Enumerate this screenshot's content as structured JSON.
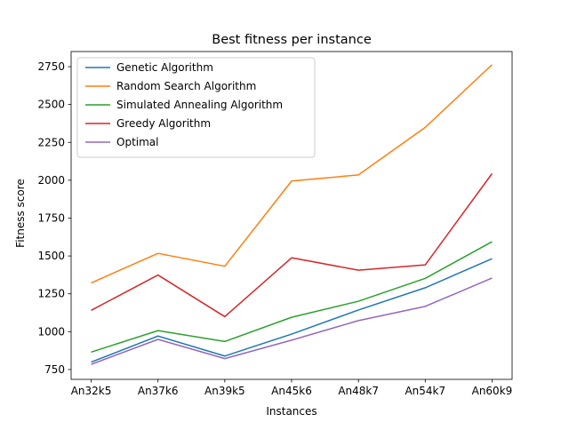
{
  "chart_data": {
    "type": "line",
    "title": "Best fitness per instance",
    "xlabel": "Instances",
    "ylabel": "Fitness score",
    "categories": [
      "An32k5",
      "An37k6",
      "An39k5",
      "An45k6",
      "An48k7",
      "An54k7",
      "An60k9"
    ],
    "ylim": [
      685,
      2850
    ],
    "yticks": [
      750,
      1000,
      1250,
      1500,
      1750,
      2000,
      2250,
      2500,
      2750
    ],
    "grid": false,
    "legend_position": "upper-left",
    "series": [
      {
        "name": "Genetic Algorithm",
        "color": "#1f77b4",
        "values": [
          799,
          971,
          839,
          984,
          1143,
          1290,
          1482
        ]
      },
      {
        "name": "Random Search Algorithm",
        "color": "#ff7f0e",
        "values": [
          1322,
          1517,
          1432,
          1995,
          2035,
          2349,
          2763
        ]
      },
      {
        "name": "Simulated Annealing Algorithm",
        "color": "#2ca02c",
        "values": [
          865,
          1007,
          935,
          1095,
          1201,
          1352,
          1594
        ]
      },
      {
        "name": "Greedy Algorithm",
        "color": "#d62728",
        "values": [
          1141,
          1374,
          1099,
          1488,
          1406,
          1441,
          2044
        ]
      },
      {
        "name": "Optimal",
        "color": "#9467bd",
        "values": [
          784,
          949,
          822,
          944,
          1073,
          1167,
          1354
        ]
      }
    ]
  }
}
